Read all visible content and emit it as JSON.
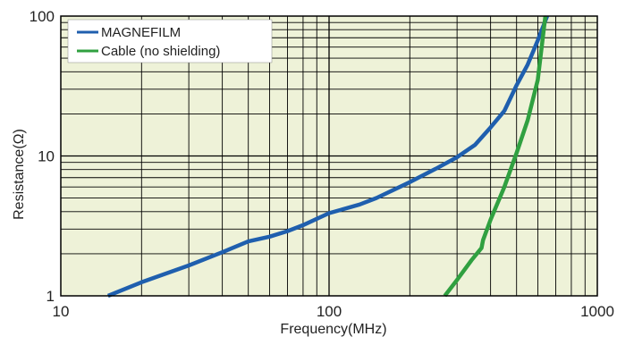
{
  "chart_data": {
    "type": "line",
    "title": "",
    "xlabel": "Frequency(MHz)",
    "ylabel": "Resistance(Ω)",
    "x_scale": "log",
    "y_scale": "log",
    "xlim": [
      10,
      1000
    ],
    "ylim": [
      1,
      100
    ],
    "x_ticks": [
      10,
      100,
      1000
    ],
    "x_tick_labels": [
      "10",
      "100",
      "1000"
    ],
    "y_ticks": [
      1,
      10,
      100
    ],
    "y_tick_labels": [
      "1",
      "10",
      "100"
    ],
    "grid": true,
    "legend_position": "top-left",
    "background_color": "#eef2d8",
    "series": [
      {
        "name": "MAGNEFILM",
        "color": "#1f5fae",
        "x": [
          15,
          20,
          30,
          40,
          50,
          60,
          70,
          80,
          100,
          130,
          150,
          200,
          250,
          300,
          350,
          400,
          450,
          500,
          550,
          600,
          650
        ],
        "y": [
          1.0,
          1.25,
          1.65,
          2.05,
          2.45,
          2.65,
          2.9,
          3.2,
          3.9,
          4.5,
          5.0,
          6.5,
          8.1,
          9.8,
          12.0,
          16.0,
          21.0,
          32.0,
          45.0,
          67.0,
          100.0
        ]
      },
      {
        "name": "Cable (no shielding)",
        "color": "#30a040",
        "x": [
          270,
          300,
          340,
          370,
          375,
          400,
          450,
          500,
          550,
          600,
          640
        ],
        "y": [
          1.0,
          1.3,
          1.8,
          2.2,
          2.5,
          3.5,
          6.0,
          10.5,
          18.0,
          35.0,
          100.0
        ]
      }
    ]
  }
}
